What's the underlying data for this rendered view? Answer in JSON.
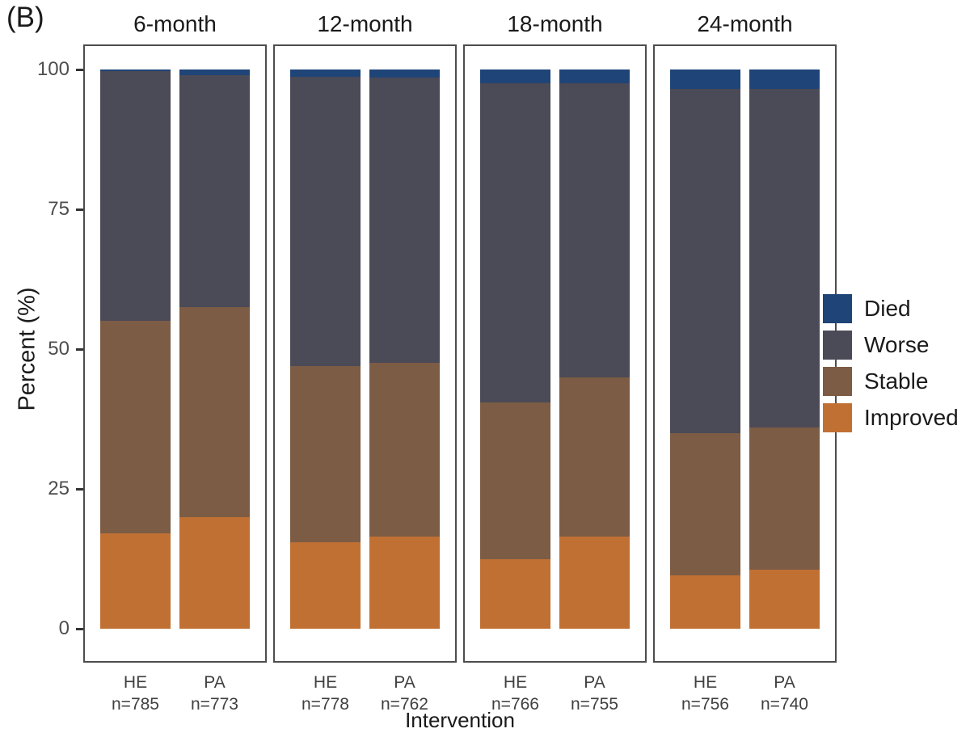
{
  "figure": {
    "panel_label": "(B)",
    "x_axis_title": "Intervention",
    "y_axis_title": "Percent (%)"
  },
  "chart_data": {
    "type": "bar",
    "stacked": true,
    "unit": "percent",
    "ylim": [
      0,
      100
    ],
    "yticks": [
      0,
      25,
      50,
      75,
      100
    ],
    "ylabel": "Percent (%)",
    "xlabel": "Intervention",
    "legend_position": "right",
    "legend": [
      {
        "label": "Died",
        "color": "#1f4478"
      },
      {
        "label": "Worse",
        "color": "#4b4a57"
      },
      {
        "label": "Stable",
        "color": "#7c5c44"
      },
      {
        "label": "Improved",
        "color": "#c17034"
      }
    ],
    "panels": [
      {
        "title": "6-month",
        "bars": [
          {
            "group": "HE",
            "n_label": "n=785",
            "segments": {
              "Improved": 17,
              "Stable": 38,
              "Worse": 44.7,
              "Died": 0.3
            }
          },
          {
            "group": "PA",
            "n_label": "n=773",
            "segments": {
              "Improved": 20,
              "Stable": 37.5,
              "Worse": 41.5,
              "Died": 1
            }
          }
        ]
      },
      {
        "title": "12-month",
        "bars": [
          {
            "group": "HE",
            "n_label": "n=778",
            "segments": {
              "Improved": 15.5,
              "Stable": 31.5,
              "Worse": 51.7,
              "Died": 1.3
            }
          },
          {
            "group": "PA",
            "n_label": "n=762",
            "segments": {
              "Improved": 16.5,
              "Stable": 31,
              "Worse": 51,
              "Died": 1.5
            }
          }
        ]
      },
      {
        "title": "18-month",
        "bars": [
          {
            "group": "HE",
            "n_label": "n=766",
            "segments": {
              "Improved": 12.5,
              "Stable": 28,
              "Worse": 57,
              "Died": 2.5
            }
          },
          {
            "group": "PA",
            "n_label": "n=755",
            "segments": {
              "Improved": 16.5,
              "Stable": 28.5,
              "Worse": 52.5,
              "Died": 2.5
            }
          }
        ]
      },
      {
        "title": "24-month",
        "bars": [
          {
            "group": "HE",
            "n_label": "n=756",
            "segments": {
              "Improved": 9.5,
              "Stable": 25.5,
              "Worse": 61.5,
              "Died": 3.5
            }
          },
          {
            "group": "PA",
            "n_label": "n=740",
            "segments": {
              "Improved": 10.5,
              "Stable": 25.5,
              "Worse": 60.5,
              "Died": 3.5
            }
          }
        ]
      }
    ]
  }
}
